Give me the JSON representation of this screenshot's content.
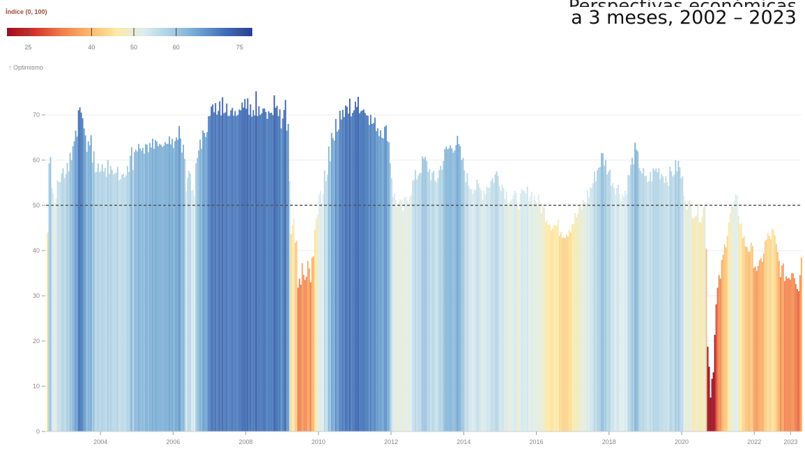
{
  "title": {
    "line1": "Perspectivas económicas",
    "line2": "a 3 meses, 2002 – 2023"
  },
  "legend": {
    "title": "Índice (0, 100)",
    "ticks": [
      "25",
      "40",
      "50",
      "60",
      "75"
    ],
    "tick_values": [
      25,
      40,
      50,
      60,
      75
    ],
    "range": [
      20,
      78
    ],
    "subtitle": "↑ Optimismo",
    "colors": [
      "#9a0f22",
      "#d3322b",
      "#f17c4a",
      "#fbb76a",
      "#fde9a2",
      "#ddedf0",
      "#aacfe3",
      "#6fa5d2",
      "#3f6eb5",
      "#2a3e96"
    ]
  },
  "chart_data": {
    "type": "bar",
    "title": "a 3 meses, 2002 – 2023",
    "xlabel": "",
    "ylabel": "",
    "ylim": [
      0,
      80
    ],
    "yticks": [
      0,
      10,
      20,
      30,
      40,
      50,
      60,
      70
    ],
    "xlim": [
      2002.5,
      2023.3
    ],
    "xticks": [
      "2004",
      "2006",
      "2008",
      "2010",
      "2012",
      "2014",
      "2016",
      "2018",
      "2020",
      "2022",
      "2023"
    ],
    "xtick_values": [
      2004,
      2006,
      2008,
      2010,
      2012,
      2014,
      2016,
      2018,
      2020,
      2022,
      2023
    ],
    "reference_line": 50,
    "grid": true,
    "series": [
      {
        "values": [
          [
            2002.6,
            60.7
          ],
          [
            2002.7,
            55.5
          ],
          [
            2002.8,
            50.4
          ],
          [
            2002.9,
            56.0
          ],
          [
            2003.0,
            57.2
          ],
          [
            2003.1,
            59.3
          ],
          [
            2003.2,
            60.9
          ],
          [
            2003.3,
            62.7
          ],
          [
            2003.4,
            66.0
          ],
          [
            2003.5,
            71.0
          ],
          [
            2003.6,
            70.5
          ],
          [
            2003.7,
            67.0
          ],
          [
            2003.8,
            61.8
          ],
          [
            2003.9,
            63.8
          ],
          [
            2004.0,
            57.2
          ],
          [
            2004.1,
            59.2
          ],
          [
            2004.2,
            57.6
          ],
          [
            2004.3,
            58.3
          ],
          [
            2004.4,
            60.0
          ],
          [
            2004.5,
            58.5
          ],
          [
            2004.6,
            58.3
          ],
          [
            2004.7,
            57.3
          ],
          [
            2004.8,
            56.1
          ],
          [
            2004.9,
            57.3
          ],
          [
            2005.0,
            56.4
          ],
          [
            2005.1,
            56.5
          ],
          [
            2005.2,
            57.8
          ],
          [
            2005.3,
            62.3
          ],
          [
            2005.4,
            62.4
          ],
          [
            2005.5,
            62.7
          ],
          [
            2005.6,
            63.5
          ],
          [
            2005.7,
            62.8
          ],
          [
            2005.8,
            63.2
          ],
          [
            2005.9,
            62.6
          ],
          [
            2006.0,
            62.8
          ],
          [
            2006.1,
            63.6
          ],
          [
            2006.2,
            64.3
          ],
          [
            2006.3,
            64.0
          ],
          [
            2006.4,
            64.6
          ],
          [
            2006.5,
            65.0
          ],
          [
            2006.6,
            67.5
          ],
          [
            2006.7,
            63.3
          ],
          [
            2006.8,
            53.3
          ],
          [
            2006.9,
            57.2
          ],
          [
            2007.0,
            52.4
          ],
          [
            2007.1,
            60.1
          ],
          [
            2007.2,
            62.3
          ],
          [
            2007.3,
            65.7
          ],
          [
            2007.4,
            67.0
          ],
          [
            2007.5,
            69.8
          ],
          [
            2007.6,
            72.0
          ],
          [
            2007.7,
            72.5
          ],
          [
            2007.8,
            73.2
          ],
          [
            2007.9,
            72.7
          ],
          [
            2008.0,
            73.5
          ],
          [
            2008.1,
            73.9
          ],
          [
            2008.2,
            71.0
          ],
          [
            2008.3,
            72.4
          ],
          [
            2008.4,
            70.1
          ],
          [
            2008.5,
            70.2
          ],
          [
            2008.6,
            71.9
          ],
          [
            2008.7,
            75.2
          ],
          [
            2008.8,
            71.8
          ],
          [
            2008.9,
            69.5
          ],
          [
            2009.0,
            66.9
          ],
          [
            2009.1,
            73.9
          ],
          [
            2009.2,
            67.7
          ],
          [
            2009.3,
            50.5
          ],
          [
            2009.4,
            42.0
          ],
          [
            2009.5,
            45.4
          ],
          [
            2009.6,
            40.5
          ],
          [
            2009.7,
            31.8
          ],
          [
            2009.8,
            33.7
          ],
          [
            2009.9,
            37.7
          ],
          [
            2010.0,
            33.0
          ],
          [
            2010.1,
            39.1
          ],
          [
            2010.2,
            49.2
          ],
          [
            2010.3,
            52.7
          ],
          [
            2010.4,
            50.5
          ],
          [
            2010.5,
            56.6
          ],
          [
            2010.6,
            62.7
          ],
          [
            2010.7,
            65.5
          ],
          [
            2010.8,
            68.0
          ],
          [
            2010.9,
            69.4
          ],
          [
            2011.0,
            71.1
          ],
          [
            2011.1,
            71.0
          ],
          [
            2011.2,
            71.6
          ],
          [
            2011.3,
            73.6
          ],
          [
            2011.4,
            70.6
          ],
          [
            2011.5,
            71.0
          ],
          [
            2011.6,
            73.9
          ],
          [
            2011.7,
            70.7
          ],
          [
            2011.8,
            70.9
          ],
          [
            2011.9,
            70.6
          ],
          [
            2012.0,
            69.4
          ],
          [
            2012.1,
            67.5
          ],
          [
            2012.2,
            65.8
          ],
          [
            2012.3,
            65.0
          ],
          [
            2012.4,
            54.2
          ]
        ]
      }
    ],
    "bars": [
      [
        2002.6,
        60.7
      ],
      [
        2002.72,
        50.5
      ],
      [
        2002.8,
        55.5
      ],
      [
        2002.9,
        57.0
      ],
      [
        2003.0,
        56.0
      ],
      [
        2003.1,
        57.5
      ],
      [
        2003.2,
        60.0
      ],
      [
        2003.3,
        66.5
      ],
      [
        2003.38,
        71.0
      ],
      [
        2003.46,
        70.5
      ],
      [
        2003.54,
        67.0
      ],
      [
        2003.62,
        61.8
      ],
      [
        2003.72,
        65.5
      ],
      [
        2003.82,
        57.3
      ],
      [
        2003.92,
        59.3
      ],
      [
        2004.0,
        57.6
      ],
      [
        2004.1,
        58.3
      ],
      [
        2004.2,
        60.0
      ],
      [
        2004.28,
        58.7
      ],
      [
        2004.38,
        57.0
      ],
      [
        2004.48,
        55.5
      ],
      [
        2004.56,
        56.8
      ],
      [
        2004.66,
        56.2
      ],
      [
        2004.76,
        57.4
      ],
      [
        2004.86,
        57.8
      ],
      [
        2004.96,
        62.3
      ],
      [
        2005.06,
        62.6
      ],
      [
        2005.16,
        62.7
      ],
      [
        2005.26,
        63.4
      ],
      [
        2005.36,
        62.8
      ],
      [
        2005.46,
        62.5
      ],
      [
        2005.56,
        63.1
      ],
      [
        2005.66,
        63.4
      ],
      [
        2005.76,
        64.0
      ],
      [
        2005.86,
        63.6
      ],
      [
        2005.96,
        64.7
      ],
      [
        2006.06,
        65.0
      ],
      [
        2006.16,
        67.5
      ],
      [
        2006.26,
        63.4
      ],
      [
        2006.36,
        53.0
      ],
      [
        2006.46,
        57.0
      ],
      [
        2006.56,
        52.0
      ],
      [
        2006.66,
        60.5
      ],
      [
        2006.76,
        62.5
      ],
      [
        2006.86,
        66.0
      ],
      [
        2006.96,
        69.7
      ],
      [
        2007.06,
        72.3
      ],
      [
        2007.16,
        72.6
      ],
      [
        2007.26,
        73.0
      ],
      [
        2007.36,
        73.9
      ],
      [
        2007.46,
        72.5
      ],
      [
        2007.56,
        71.0
      ],
      [
        2007.66,
        69.8
      ],
      [
        2007.76,
        70.0
      ],
      [
        2007.86,
        71.0
      ],
      [
        2007.96,
        73.5
      ],
      [
        2008.06,
        70.0
      ],
      [
        2008.16,
        69.6
      ],
      [
        2008.26,
        75.2
      ],
      [
        2008.36,
        71.9
      ],
      [
        2008.46,
        71.4
      ],
      [
        2008.56,
        69.1
      ],
      [
        2008.66,
        70.4
      ],
      [
        2008.76,
        74.3
      ],
      [
        2008.86,
        72.0
      ],
      [
        2008.96,
        67.0
      ],
      [
        2009.06,
        73.3
      ],
      [
        2009.14,
        68.0
      ],
      [
        2009.22,
        43.6
      ],
      [
        2009.3,
        47.2
      ],
      [
        2009.38,
        42.2
      ],
      [
        2009.44,
        31.8
      ],
      [
        2009.52,
        37.2
      ],
      [
        2009.6,
        33.5
      ],
      [
        2009.68,
        37.7
      ],
      [
        2009.76,
        33.0
      ],
      [
        2009.84,
        38.7
      ],
      [
        2009.92,
        47.0
      ],
      [
        2010.0,
        52.4
      ],
      [
        2010.08,
        50.5
      ],
      [
        2010.16,
        57.7
      ],
      [
        2010.26,
        63.0
      ],
      [
        2010.36,
        66.0
      ],
      [
        2010.46,
        69.1
      ],
      [
        2010.56,
        70.9
      ],
      [
        2010.66,
        71.1
      ],
      [
        2010.76,
        71.8
      ],
      [
        2010.86,
        73.6
      ],
      [
        2010.96,
        71.0
      ],
      [
        2011.06,
        74.0
      ],
      [
        2011.16,
        70.8
      ],
      [
        2011.26,
        70.4
      ],
      [
        2011.36,
        69.8
      ],
      [
        2011.46,
        68.0
      ],
      [
        2011.56,
        66.4
      ],
      [
        2011.66,
        65.3
      ],
      [
        2011.76,
        64.8
      ]
    ]
  }
}
